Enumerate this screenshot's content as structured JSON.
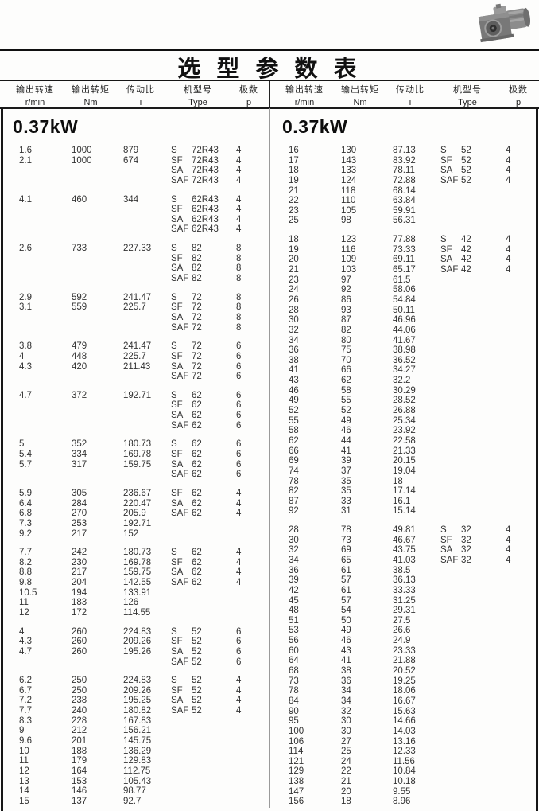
{
  "page": {
    "title": "选 型 参 数 表"
  },
  "icons": {
    "gearmotor_photo": "gearmotor-product-photo"
  },
  "colors": {
    "ink": "#1a1a1a",
    "table_text": "#333333",
    "divider_gray": "#9a9a9a",
    "paper": "#fdfdfc"
  },
  "table": {
    "headers": [
      {
        "line1": "输出转速",
        "line2": "r/min"
      },
      {
        "line1": "输出转矩",
        "line2": "Nm"
      },
      {
        "line1": "传动比",
        "line2": "i"
      },
      {
        "line1": "机型号",
        "line2": "Type"
      },
      {
        "line1": "极数",
        "line2": "p"
      }
    ],
    "left_column": {
      "section": "0.37kW",
      "groups": [
        [
          [
            "1.6",
            "1000",
            "879",
            "S",
            "72R43",
            "4"
          ],
          [
            "2.1",
            "1000",
            "674",
            "SF",
            "72R43",
            "4"
          ],
          [
            "",
            "",
            "",
            "SA",
            "72R43",
            "4"
          ],
          [
            "",
            "",
            "",
            "SAF",
            "72R43",
            "4"
          ]
        ],
        [
          [
            "4.1",
            "460",
            "344",
            "S",
            "62R43",
            "4"
          ],
          [
            "",
            "",
            "",
            "SF",
            "62R43",
            "4"
          ],
          [
            "",
            "",
            "",
            "SA",
            "62R43",
            "4"
          ],
          [
            "",
            "",
            "",
            "SAF",
            "62R43",
            "4"
          ]
        ],
        [
          [
            "2.6",
            "733",
            "227.33",
            "S",
            "82",
            "8"
          ],
          [
            "",
            "",
            "",
            "SF",
            "82",
            "8"
          ],
          [
            "",
            "",
            "",
            "SA",
            "82",
            "8"
          ],
          [
            "",
            "",
            "",
            "SAF",
            "82",
            "8"
          ]
        ],
        [
          [
            "2.9",
            "592",
            "241.47",
            "S",
            "72",
            "8"
          ],
          [
            "3.1",
            "559",
            "225.7",
            "SF",
            "72",
            "8"
          ],
          [
            "",
            "",
            "",
            "SA",
            "72",
            "8"
          ],
          [
            "",
            "",
            "",
            "SAF",
            "72",
            "8"
          ]
        ],
        [
          [
            "3.8",
            "479",
            "241.47",
            "S",
            "72",
            "6"
          ],
          [
            "4",
            "448",
            "225.7",
            "SF",
            "72",
            "6"
          ],
          [
            "4.3",
            "420",
            "211.43",
            "SA",
            "72",
            "6"
          ],
          [
            "",
            "",
            "",
            "SAF",
            "72",
            "6"
          ]
        ],
        [
          [
            "4.7",
            "372",
            "192.71",
            "S",
            "62",
            "6"
          ],
          [
            "",
            "",
            "",
            "SF",
            "62",
            "6"
          ],
          [
            "",
            "",
            "",
            "SA",
            "62",
            "6"
          ],
          [
            "",
            "",
            "",
            "SAF",
            "62",
            "6"
          ]
        ],
        [
          [
            "5",
            "352",
            "180.73",
            "S",
            "62",
            "6"
          ],
          [
            "5.4",
            "334",
            "169.78",
            "SF",
            "62",
            "6"
          ],
          [
            "5.7",
            "317",
            "159.75",
            "SA",
            "62",
            "6"
          ],
          [
            "",
            "",
            "",
            "SAF",
            "62",
            "6"
          ]
        ],
        [
          [
            "5.9",
            "305",
            "236.67",
            "SF",
            "62",
            "4"
          ],
          [
            "6.4",
            "284",
            "220.47",
            "SA",
            "62",
            "4"
          ],
          [
            "6.8",
            "270",
            "205.9",
            "SAF",
            "62",
            "4"
          ],
          [
            "7.3",
            "253",
            "192.71",
            "",
            "",
            ""
          ],
          [
            "9.2",
            "217",
            "152",
            "",
            "",
            ""
          ]
        ],
        [
          [
            "7.7",
            "242",
            "180.73",
            "S",
            "62",
            "4"
          ],
          [
            "8.2",
            "230",
            "169.78",
            "SF",
            "62",
            "4"
          ],
          [
            "8.8",
            "217",
            "159.75",
            "SA",
            "62",
            "4"
          ],
          [
            "9.8",
            "204",
            "142.55",
            "SAF",
            "62",
            "4"
          ],
          [
            "10.5",
            "194",
            "133.91",
            "",
            "",
            ""
          ],
          [
            "11",
            "183",
            "126",
            "",
            "",
            ""
          ],
          [
            "12",
            "172",
            "114.55",
            "",
            "",
            ""
          ]
        ],
        [
          [
            "4",
            "260",
            "224.83",
            "S",
            "52",
            "6"
          ],
          [
            "4.3",
            "260",
            "209.26",
            "SF",
            "52",
            "6"
          ],
          [
            "4.7",
            "260",
            "195.26",
            "SA",
            "52",
            "6"
          ],
          [
            "",
            "",
            "",
            "SAF",
            "52",
            "6"
          ]
        ],
        [
          [
            "6.2",
            "250",
            "224.83",
            "S",
            "52",
            "4"
          ],
          [
            "6.7",
            "250",
            "209.26",
            "SF",
            "52",
            "4"
          ],
          [
            "7.2",
            "238",
            "195.25",
            "SA",
            "52",
            "4"
          ],
          [
            "7.7",
            "240",
            "180.82",
            "SAF",
            "52",
            "4"
          ],
          [
            "8.3",
            "228",
            "167.83",
            "",
            "",
            ""
          ],
          [
            "9",
            "212",
            "156.21",
            "",
            "",
            ""
          ],
          [
            "9.6",
            "201",
            "145.75",
            "",
            "",
            ""
          ],
          [
            "10",
            "188",
            "136.29",
            "",
            "",
            ""
          ],
          [
            "11",
            "179",
            "129.83",
            "",
            "",
            ""
          ],
          [
            "12",
            "164",
            "112.75",
            "",
            "",
            ""
          ],
          [
            "13",
            "153",
            "105.43",
            "",
            "",
            ""
          ],
          [
            "14",
            "146",
            "98.77",
            "",
            "",
            ""
          ],
          [
            "15",
            "137",
            "92.7",
            "",
            "",
            ""
          ]
        ]
      ]
    },
    "right_column": {
      "section": "0.37kW",
      "groups": [
        [
          [
            "16",
            "130",
            "87.13",
            "S",
            "52",
            "4"
          ],
          [
            "17",
            "143",
            "83.92",
            "SF",
            "52",
            "4"
          ],
          [
            "18",
            "133",
            "78.11",
            "SA",
            "52",
            "4"
          ],
          [
            "19",
            "124",
            "72.88",
            "SAF",
            "52",
            "4"
          ],
          [
            "21",
            "118",
            "68.14",
            "",
            "",
            ""
          ],
          [
            "22",
            "110",
            "63.84",
            "",
            "",
            ""
          ],
          [
            "23",
            "105",
            "59.91",
            "",
            "",
            ""
          ],
          [
            "25",
            "98",
            "56.31",
            "",
            "",
            ""
          ]
        ],
        [
          [
            "18",
            "123",
            "77.88",
            "S",
            "42",
            "4"
          ],
          [
            "19",
            "116",
            "73.33",
            "SF",
            "42",
            "4"
          ],
          [
            "20",
            "109",
            "69.11",
            "SA",
            "42",
            "4"
          ],
          [
            "21",
            "103",
            "65.17",
            "SAF",
            "42",
            "4"
          ],
          [
            "23",
            "97",
            "61.5",
            "",
            "",
            ""
          ],
          [
            "24",
            "92",
            "58.06",
            "",
            "",
            ""
          ],
          [
            "26",
            "86",
            "54.84",
            "",
            "",
            ""
          ],
          [
            "28",
            "93",
            "50.11",
            "",
            "",
            ""
          ],
          [
            "30",
            "87",
            "46.96",
            "",
            "",
            ""
          ],
          [
            "32",
            "82",
            "44.06",
            "",
            "",
            ""
          ],
          [
            "34",
            "80",
            "41.67",
            "",
            "",
            ""
          ],
          [
            "36",
            "75",
            "38.98",
            "",
            "",
            ""
          ],
          [
            "38",
            "70",
            "36.52",
            "",
            "",
            ""
          ],
          [
            "41",
            "66",
            "34.27",
            "",
            "",
            ""
          ],
          [
            "43",
            "62",
            "32.2",
            "",
            "",
            ""
          ],
          [
            "46",
            "58",
            "30.29",
            "",
            "",
            ""
          ],
          [
            "49",
            "55",
            "28.52",
            "",
            "",
            ""
          ],
          [
            "52",
            "52",
            "26.88",
            "",
            "",
            ""
          ],
          [
            "55",
            "49",
            "25.34",
            "",
            "",
            ""
          ],
          [
            "58",
            "46",
            "23.92",
            "",
            "",
            ""
          ],
          [
            "62",
            "44",
            "22.58",
            "",
            "",
            ""
          ],
          [
            "66",
            "41",
            "21.33",
            "",
            "",
            ""
          ],
          [
            "69",
            "39",
            "20.15",
            "",
            "",
            ""
          ],
          [
            "74",
            "37",
            "19.04",
            "",
            "",
            ""
          ],
          [
            "78",
            "35",
            "18",
            "",
            "",
            ""
          ],
          [
            "82",
            "35",
            "17.14",
            "",
            "",
            ""
          ],
          [
            "87",
            "33",
            "16.1",
            "",
            "",
            ""
          ],
          [
            "92",
            "31",
            "15.14",
            "",
            "",
            ""
          ]
        ],
        [
          [
            "28",
            "78",
            "49.81",
            "S",
            "32",
            "4"
          ],
          [
            "30",
            "73",
            "46.67",
            "SF",
            "32",
            "4"
          ],
          [
            "32",
            "69",
            "43.75",
            "SA",
            "32",
            "4"
          ],
          [
            "34",
            "65",
            "41.03",
            "SAF",
            "32",
            "4"
          ],
          [
            "36",
            "61",
            "38.5",
            "",
            "",
            ""
          ],
          [
            "39",
            "57",
            "36.13",
            "",
            "",
            ""
          ],
          [
            "42",
            "61",
            "33.33",
            "",
            "",
            ""
          ],
          [
            "45",
            "57",
            "31.25",
            "",
            "",
            ""
          ],
          [
            "48",
            "54",
            "29.31",
            "",
            "",
            ""
          ],
          [
            "51",
            "50",
            "27.5",
            "",
            "",
            ""
          ],
          [
            "53",
            "49",
            "26.6",
            "",
            "",
            ""
          ],
          [
            "56",
            "46",
            "24.9",
            "",
            "",
            ""
          ],
          [
            "60",
            "43",
            "23.33",
            "",
            "",
            ""
          ],
          [
            "64",
            "41",
            "21.88",
            "",
            "",
            ""
          ],
          [
            "68",
            "38",
            "20.52",
            "",
            "",
            ""
          ],
          [
            "73",
            "36",
            "19.25",
            "",
            "",
            ""
          ],
          [
            "78",
            "34",
            "18.06",
            "",
            "",
            ""
          ],
          [
            "84",
            "34",
            "16.67",
            "",
            "",
            ""
          ],
          [
            "90",
            "32",
            "15.63",
            "",
            "",
            ""
          ],
          [
            "95",
            "30",
            "14.66",
            "",
            "",
            ""
          ],
          [
            "100",
            "30",
            "14.03",
            "",
            "",
            ""
          ],
          [
            "106",
            "27",
            "13.16",
            "",
            "",
            ""
          ],
          [
            "114",
            "25",
            "12.33",
            "",
            "",
            ""
          ],
          [
            "121",
            "24",
            "11.56",
            "",
            "",
            ""
          ],
          [
            "129",
            "22",
            "10.84",
            "",
            "",
            ""
          ],
          [
            "138",
            "21",
            "10.18",
            "",
            "",
            ""
          ],
          [
            "147",
            "20",
            "9.55",
            "",
            "",
            ""
          ],
          [
            "156",
            "18",
            "8.96",
            "",
            "",
            ""
          ]
        ]
      ]
    }
  }
}
